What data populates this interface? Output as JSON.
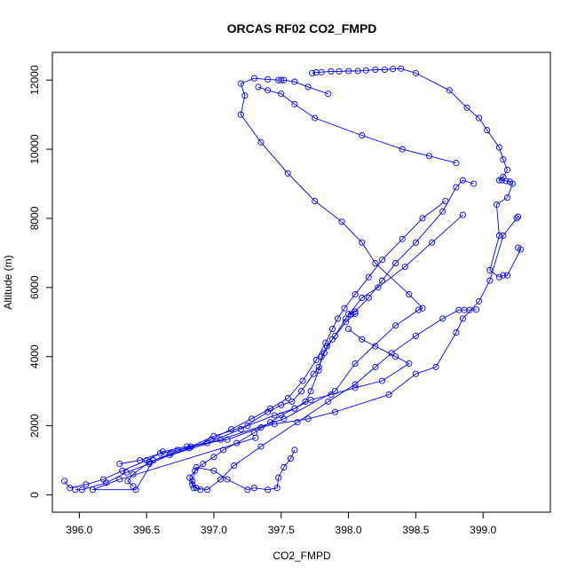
{
  "chart_data": {
    "type": "line",
    "title": "ORCAS RF02 CO2_FMPD",
    "xlabel": "CO2_FMPD",
    "ylabel": "Altitude (m)",
    "xlim": [
      395.8,
      399.5
    ],
    "ylim": [
      -500,
      12800
    ],
    "x_ticks": [
      396.0,
      396.5,
      397.0,
      397.5,
      398.0,
      398.5,
      399.0
    ],
    "x_tick_labels": [
      "396.0",
      "396.5",
      "397.0",
      "397.5",
      "398.0",
      "398.5",
      "399.0"
    ],
    "y_ticks": [
      0,
      2000,
      4000,
      6000,
      8000,
      10000,
      12000
    ],
    "y_tick_labels": [
      "0",
      "2000",
      "4000",
      "6000",
      "8000",
      "10000",
      "12000"
    ],
    "grid": false,
    "marker": "open-circle",
    "series": [
      {
        "color": "#0000ff",
        "points": [
          [
            397.31,
            1650
          ],
          [
            396.3,
            450
          ],
          [
            396.1,
            150
          ],
          [
            396.42,
            150
          ],
          [
            396.55,
            1000
          ],
          [
            397.05,
            1600
          ],
          [
            397.52,
            2200
          ],
          [
            397.9,
            3000
          ],
          [
            398.05,
            3800
          ],
          [
            398.35,
            4900
          ],
          [
            398.52,
            5350
          ],
          [
            398.55,
            5400
          ],
          [
            398.45,
            5800
          ],
          [
            398.2,
            6700
          ],
          [
            398.1,
            7300
          ],
          [
            397.95,
            7900
          ],
          [
            397.75,
            8500
          ],
          [
            397.55,
            9300
          ],
          [
            397.35,
            10200
          ],
          [
            397.2,
            11000
          ],
          [
            397.23,
            11550
          ],
          [
            397.2,
            11900
          ],
          [
            397.3,
            12050
          ],
          [
            397.4,
            12020
          ],
          [
            397.48,
            12000
          ],
          [
            397.5,
            12000
          ],
          [
            397.52,
            12000
          ],
          [
            397.6,
            11950
          ],
          [
            397.7,
            11800
          ],
          [
            397.85,
            11600
          ]
        ]
      },
      {
        "color": "#0000ff",
        "points": [
          [
            397.73,
            12200
          ],
          [
            397.76,
            12220
          ],
          [
            397.8,
            12230
          ],
          [
            397.87,
            12250
          ],
          [
            397.93,
            12250
          ],
          [
            398.0,
            12260
          ],
          [
            398.07,
            12260
          ],
          [
            398.13,
            12280
          ],
          [
            398.2,
            12300
          ],
          [
            398.27,
            12300
          ],
          [
            398.33,
            12320
          ],
          [
            398.39,
            12330
          ],
          [
            398.5,
            12200
          ],
          [
            398.75,
            11700
          ],
          [
            398.88,
            11200
          ],
          [
            398.97,
            10900
          ],
          [
            399.03,
            10550
          ],
          [
            399.12,
            10050
          ],
          [
            399.15,
            9700
          ],
          [
            399.18,
            9400
          ],
          [
            399.15,
            9200
          ],
          [
            399.12,
            9100
          ],
          [
            399.14,
            9100
          ],
          [
            399.17,
            9080
          ],
          [
            399.2,
            9060
          ],
          [
            399.22,
            9000
          ],
          [
            399.18,
            8600
          ],
          [
            399.1,
            8400
          ],
          [
            399.12,
            7500
          ],
          [
            399.05,
            6500
          ],
          [
            399.12,
            6300
          ],
          [
            399.15,
            6350
          ],
          [
            399.18,
            6350
          ],
          [
            399.28,
            7100
          ],
          [
            399.26,
            7150
          ]
        ]
      },
      {
        "color": "#0000ff",
        "points": [
          [
            399.25,
            8000
          ],
          [
            399.26,
            8050
          ],
          [
            399.15,
            7500
          ],
          [
            399.05,
            6200
          ],
          [
            398.97,
            5600
          ],
          [
            398.85,
            5100
          ],
          [
            398.8,
            4700
          ],
          [
            398.65,
            3700
          ],
          [
            398.5,
            3500
          ],
          [
            398.3,
            2900
          ],
          [
            397.9,
            2400
          ],
          [
            397.7,
            2200
          ],
          [
            397.45,
            2050
          ],
          [
            397.35,
            1950
          ],
          [
            397.1,
            1600
          ],
          [
            396.8,
            1400
          ],
          [
            396.62,
            1250
          ],
          [
            396.5,
            1000
          ],
          [
            396.32,
            700
          ],
          [
            396.18,
            450
          ],
          [
            396.05,
            300
          ],
          [
            395.93,
            200
          ],
          [
            395.89,
            400
          ]
        ]
      },
      {
        "color": "#0000ff",
        "points": [
          [
            397.6,
            1300
          ],
          [
            397.57,
            1050
          ],
          [
            397.52,
            800
          ],
          [
            397.48,
            500
          ],
          [
            397.47,
            200
          ],
          [
            397.4,
            150
          ],
          [
            397.3,
            200
          ],
          [
            397.25,
            150
          ],
          [
            397.1,
            450
          ],
          [
            397.0,
            700
          ],
          [
            396.87,
            800
          ],
          [
            396.84,
            400
          ],
          [
            396.85,
            200
          ],
          [
            396.95,
            150
          ],
          [
            397.05,
            450
          ],
          [
            397.15,
            850
          ],
          [
            397.35,
            1400
          ],
          [
            397.62,
            2100
          ],
          [
            397.85,
            2700
          ],
          [
            398.05,
            3200
          ],
          [
            398.2,
            3700
          ],
          [
            398.32,
            4100
          ],
          [
            398.5,
            4600
          ],
          [
            398.7,
            5100
          ],
          [
            398.82,
            5350
          ],
          [
            398.86,
            5350
          ],
          [
            398.9,
            5350
          ],
          [
            398.95,
            5360
          ]
        ]
      },
      {
        "color": "#0000ff",
        "points": [
          [
            398.93,
            9000
          ],
          [
            398.85,
            9100
          ],
          [
            398.8,
            8900
          ],
          [
            398.7,
            8200
          ],
          [
            398.5,
            7300
          ],
          [
            398.35,
            6700
          ],
          [
            398.25,
            6200
          ],
          [
            398.15,
            5700
          ],
          [
            398.05,
            5300
          ],
          [
            398.0,
            5230
          ],
          [
            398.02,
            5220
          ],
          [
            398.05,
            5240
          ],
          [
            397.98,
            5000
          ],
          [
            397.88,
            4500
          ],
          [
            397.82,
            4100
          ],
          [
            397.78,
            3700
          ],
          [
            397.74,
            3500
          ],
          [
            397.65,
            3000
          ],
          [
            397.58,
            2700
          ],
          [
            397.5,
            2600
          ],
          [
            397.4,
            2400
          ],
          [
            397.2,
            1900
          ],
          [
            396.95,
            1500
          ],
          [
            396.73,
            1300
          ],
          [
            396.6,
            1200
          ],
          [
            396.45,
            1000
          ],
          [
            396.3,
            900
          ]
        ]
      },
      {
        "color": "#0000ff",
        "points": [
          [
            398.8,
            9600
          ],
          [
            398.6,
            9800
          ],
          [
            398.4,
            10000
          ],
          [
            398.1,
            10400
          ],
          [
            397.75,
            10900
          ],
          [
            397.6,
            11300
          ],
          [
            397.5,
            11600
          ],
          [
            397.4,
            11700
          ],
          [
            397.33,
            11800
          ]
        ]
      },
      {
        "color": "#0000ff",
        "points": [
          [
            398.85,
            8100
          ],
          [
            398.62,
            7300
          ],
          [
            398.42,
            6600
          ],
          [
            398.22,
            6000
          ],
          [
            398.1,
            5700
          ],
          [
            397.98,
            5100
          ],
          [
            397.9,
            4600
          ],
          [
            397.84,
            4300
          ],
          [
            397.8,
            4000
          ],
          [
            397.78,
            3600
          ],
          [
            397.72,
            3000
          ],
          [
            397.68,
            2700
          ],
          [
            397.6,
            2500
          ],
          [
            397.45,
            2300
          ],
          [
            397.25,
            2000
          ],
          [
            397.0,
            1700
          ],
          [
            396.83,
            1400
          ],
          [
            396.68,
            1200
          ],
          [
            396.52,
            950
          ],
          [
            396.4,
            600
          ],
          [
            396.36,
            400
          ],
          [
            396.4,
            250
          ]
        ]
      },
      {
        "color": "#0000ff",
        "points": [
          [
            398.0,
            4800
          ],
          [
            398.1,
            4500
          ],
          [
            398.2,
            4300
          ],
          [
            398.35,
            4000
          ],
          [
            398.45,
            3800
          ],
          [
            398.25,
            3300
          ],
          [
            398.05,
            3100
          ],
          [
            397.87,
            2900
          ],
          [
            397.72,
            2750
          ],
          [
            397.6,
            2500
          ],
          [
            397.5,
            2300
          ],
          [
            397.42,
            2100
          ],
          [
            397.3,
            1800
          ],
          [
            397.17,
            1500
          ],
          [
            397.07,
            1300
          ],
          [
            397.0,
            1100
          ],
          [
            396.92,
            900
          ],
          [
            396.86,
            700
          ],
          [
            396.82,
            500
          ],
          [
            396.84,
            300
          ],
          [
            396.87,
            200
          ],
          [
            396.9,
            150
          ]
        ]
      },
      {
        "color": "#0000ff",
        "points": [
          [
            398.72,
            8500
          ],
          [
            398.55,
            8000
          ],
          [
            398.4,
            7400
          ],
          [
            398.25,
            6800
          ],
          [
            398.15,
            6300
          ],
          [
            398.05,
            5800
          ],
          [
            397.97,
            5400
          ],
          [
            397.92,
            5100
          ],
          [
            397.88,
            4800
          ],
          [
            397.83,
            4400
          ],
          [
            397.76,
            3900
          ],
          [
            397.66,
            3300
          ],
          [
            397.55,
            2800
          ],
          [
            397.42,
            2500
          ],
          [
            397.28,
            2200
          ],
          [
            397.13,
            1900
          ],
          [
            396.98,
            1600
          ],
          [
            396.82,
            1350
          ],
          [
            396.67,
            1150
          ],
          [
            396.52,
            900
          ],
          [
            396.35,
            650
          ],
          [
            396.2,
            350
          ],
          [
            396.02,
            150
          ],
          [
            395.97,
            150
          ]
        ]
      }
    ]
  }
}
